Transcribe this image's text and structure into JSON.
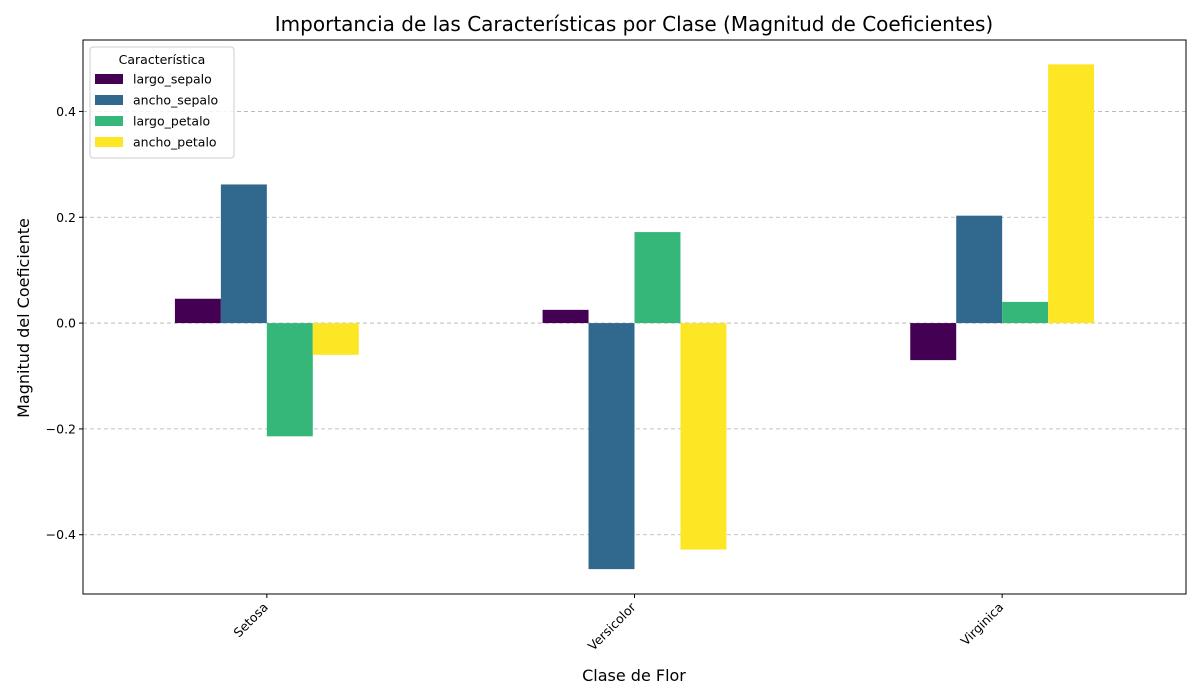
{
  "chart_data": {
    "type": "bar",
    "title": "Importancia de las Características por Clase (Magnitud de Coeficientes)",
    "xlabel": "Clase de Flor",
    "ylabel": "Magnitud del Coeficiente",
    "categories": [
      "Setosa",
      "Versicolor",
      "Virginica"
    ],
    "series": [
      {
        "name": "largo_sepalo",
        "color": "#440154",
        "values": [
          0.046,
          0.025,
          -0.07
        ]
      },
      {
        "name": "ancho_sepalo",
        "color": "#31688e",
        "values": [
          0.262,
          -0.465,
          0.203
        ]
      },
      {
        "name": "largo_petalo",
        "color": "#35b779",
        "values": [
          -0.214,
          0.172,
          0.04
        ]
      },
      {
        "name": "ancho_petalo",
        "color": "#fde725",
        "values": [
          -0.06,
          -0.428,
          0.489
        ]
      }
    ],
    "ylim": [
      -0.512,
      0.535
    ],
    "yticks": [
      -0.4,
      -0.2,
      0.0,
      0.2,
      0.4
    ],
    "ytick_labels": [
      "−0.4",
      "−0.2",
      "0.0",
      "0.2",
      "0.4"
    ],
    "grid": "y-dashed",
    "legend": {
      "title": "Característica",
      "position": "top-left"
    }
  }
}
